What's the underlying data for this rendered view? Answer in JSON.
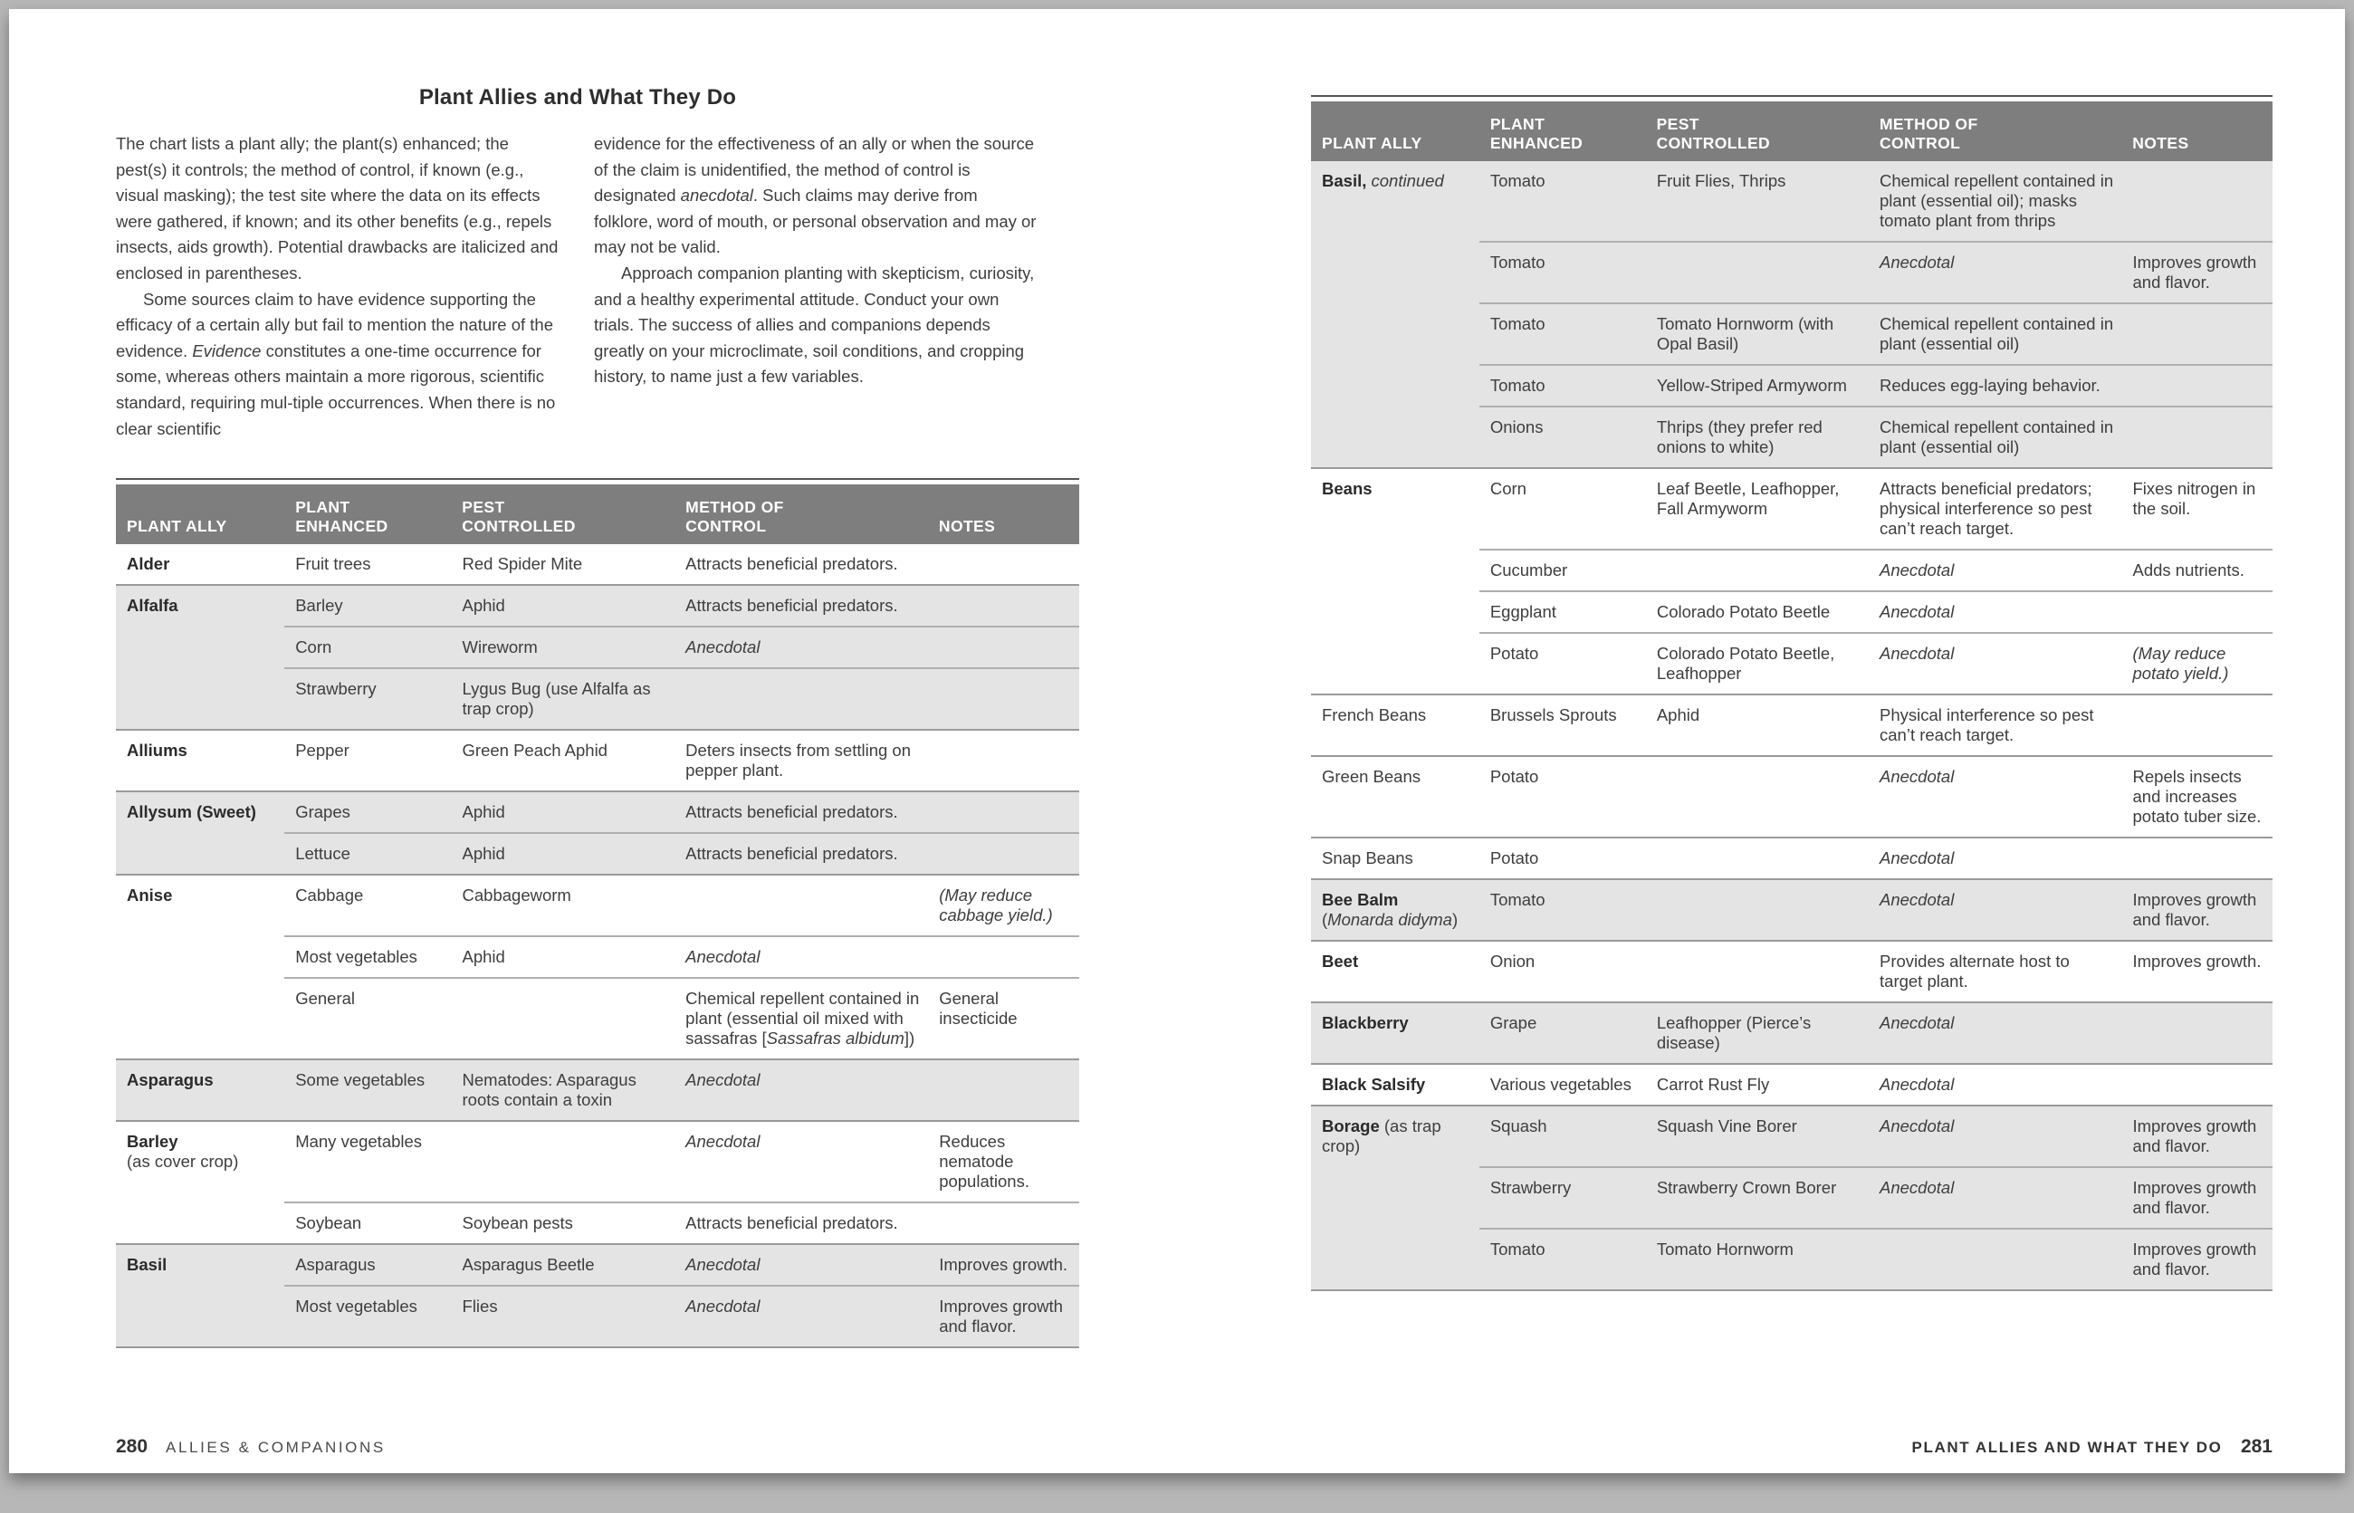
{
  "title": "Plant Allies and What They Do",
  "intro": {
    "col1": [
      {
        "indent": false,
        "text": "The chart lists a plant ally; the plant(s) enhanced; the pest(s) it controls; the method of control, if known (e.g., visual masking); the test site where the data on its effects were gathered, if known; and its other benefits (e.g., repels insects, aids growth). Potential drawbacks are italicized and enclosed in parentheses."
      },
      {
        "indent": true,
        "text": "Some sources claim to have evidence supporting the efficacy of a certain ally but fail to mention the nature of the evidence. *Evidence* constitutes a one-time occurrence for some, whereas others maintain a more rigorous, scientific standard, requiring mul-tiple occurrences. When there is no clear scientific"
      }
    ],
    "col2": [
      {
        "indent": false,
        "text": "evidence for the effectiveness of an ally or when the source of the claim is unidentified, the method of control is designated *anecdotal*. Such claims may derive from folklore, word of mouth, or personal observation and may or may not be valid."
      },
      {
        "indent": true,
        "text": "Approach companion planting with skepticism, curiosity, and a healthy experimental attitude. Conduct your own trials. The success of allies and companions depends greatly on your microclimate, soil conditions, and cropping history, to name just a few variables."
      }
    ]
  },
  "table_headers": [
    "PLANT ALLY",
    "PLANT\nENHANCED",
    "PEST\nCONTROLLED",
    "METHOD OF\nCONTROL",
    "NOTES"
  ],
  "tables": [
    {
      "groups": [
        {
          "ally": "**Alder**",
          "shaded": false,
          "rows": [
            [
              "Fruit trees",
              "Red Spider Mite",
              "Attracts beneficial predators.",
              ""
            ]
          ]
        },
        {
          "ally": "**Alfalfa**",
          "shaded": true,
          "rows": [
            [
              "Barley",
              "Aphid",
              "Attracts beneficial predators.",
              ""
            ],
            [
              "Corn",
              "Wireworm",
              "*Anecdotal*",
              ""
            ],
            [
              "Strawberry",
              "Lygus Bug (use Alfalfa as trap crop)",
              "",
              ""
            ]
          ]
        },
        {
          "ally": "**Alliums**",
          "shaded": false,
          "rows": [
            [
              "Pepper",
              "Green Peach Aphid",
              "Deters insects from settling on pepper plant.",
              ""
            ]
          ]
        },
        {
          "ally": "**Allysum (Sweet)**",
          "shaded": true,
          "rows": [
            [
              "Grapes",
              "Aphid",
              "Attracts beneficial predators.",
              ""
            ],
            [
              "Lettuce",
              "Aphid",
              "Attracts beneficial predators.",
              ""
            ]
          ]
        },
        {
          "ally": "**Anise**",
          "shaded": false,
          "rows": [
            [
              "Cabbage",
              "Cabbageworm",
              "",
              "*(May reduce cabbage yield.)*"
            ],
            [
              "Most vegetables",
              "Aphid",
              "*Anecdotal*",
              ""
            ],
            [
              "General",
              "",
              "Chemical repellent contained in plant (essential oil mixed with sassafras [*Sassafras albidum*])",
              "General insecticide"
            ]
          ]
        },
        {
          "ally": "**Asparagus**",
          "shaded": true,
          "rows": [
            [
              "Some vegetables",
              "Nematodes: Asparagus roots contain a toxin",
              "*Anecdotal*",
              ""
            ]
          ]
        },
        {
          "ally": "**Barley**\n(as cover crop)",
          "shaded": false,
          "rows": [
            [
              "Many vegetables",
              "",
              "*Anecdotal*",
              "Reduces nematode populations."
            ],
            [
              "Soybean",
              "Soybean pests",
              "Attracts beneficial predators.",
              ""
            ]
          ]
        },
        {
          "ally": "**Basil**",
          "shaded": true,
          "rows": [
            [
              "Asparagus",
              "Asparagus Beetle",
              "*Anecdotal*",
              "Improves growth."
            ],
            [
              "Most vegetables",
              "Flies",
              "*Anecdotal*",
              "Improves growth and flavor."
            ]
          ]
        }
      ]
    },
    {
      "groups": [
        {
          "ally": "**Basil,** *continued*",
          "shaded": true,
          "rows": [
            [
              "Tomato",
              "Fruit Flies, Thrips",
              "Chemical repellent contained in plant (essential oil); masks tomato plant from thrips",
              ""
            ],
            [
              "Tomato",
              "",
              "*Anecdotal*",
              "Improves growth and flavor."
            ],
            [
              "Tomato",
              "Tomato Hornworm (with Opal Basil)",
              "Chemical repellent contained in plant (essential oil)",
              ""
            ],
            [
              "Tomato",
              "Yellow-Striped Armyworm",
              "Reduces egg-laying behavior.",
              ""
            ],
            [
              "Onions",
              "Thrips (they prefer red onions to white)",
              "Chemical repellent contained in plant (essential oil)",
              ""
            ]
          ]
        },
        {
          "ally": "**Beans**",
          "shaded": false,
          "rows": [
            [
              "Corn",
              "Leaf Beetle, Leafhopper, Fall Armyworm",
              "Attracts beneficial predators; physical interference so pest can’t reach target.",
              "Fixes nitrogen in the soil."
            ],
            [
              "Cucumber",
              "",
              "*Anecdotal*",
              "Adds nutrients."
            ],
            [
              "Eggplant",
              "Colorado Potato Beetle",
              "*Anecdotal*",
              ""
            ],
            [
              "Potato",
              "Colorado Potato Beetle, Leafhopper",
              "*Anecdotal*",
              "*(May reduce potato yield.)*"
            ]
          ]
        },
        {
          "ally": "French Beans",
          "shaded": false,
          "rows": [
            [
              "Brussels Sprouts",
              "Aphid",
              "Physical interference so pest can’t reach target.",
              ""
            ]
          ]
        },
        {
          "ally": "Green Beans",
          "shaded": false,
          "rows": [
            [
              "Potato",
              "",
              "*Anecdotal*",
              "Repels insects and increases potato tuber size."
            ]
          ]
        },
        {
          "ally": "Snap Beans",
          "shaded": false,
          "rows": [
            [
              "Potato",
              "",
              "*Anecdotal*",
              ""
            ]
          ]
        },
        {
          "ally": "**Bee Balm**\n(*Monarda didyma*)",
          "shaded": true,
          "rows": [
            [
              "Tomato",
              "",
              "*Anecdotal*",
              "Improves growth and flavor."
            ]
          ]
        },
        {
          "ally": "**Beet**",
          "shaded": false,
          "rows": [
            [
              "Onion",
              "",
              "Provides alternate host to target plant.",
              "Improves growth."
            ]
          ]
        },
        {
          "ally": "**Blackberry**",
          "shaded": true,
          "rows": [
            [
              "Grape",
              "Leafhopper (Pierce’s disease)",
              "*Anecdotal*",
              ""
            ]
          ]
        },
        {
          "ally": "**Black Salsify**",
          "shaded": false,
          "rows": [
            [
              "Various vegetables",
              "Carrot Rust Fly",
              "*Anecdotal*",
              ""
            ]
          ]
        },
        {
          "ally": "**Borage** (as trap crop)",
          "shaded": true,
          "rows": [
            [
              "Squash",
              "Squash Vine Borer",
              "*Anecdotal*",
              "Improves growth and flavor."
            ],
            [
              "Strawberry",
              "Strawberry Crown Borer",
              "*Anecdotal*",
              "Improves growth and flavor."
            ],
            [
              "Tomato",
              "Tomato Hornworm",
              "",
              "Improves growth and flavor."
            ]
          ]
        }
      ]
    }
  ],
  "footer_left": {
    "page_number": "280",
    "running_head": "ALLIES & COMPANIONS"
  },
  "footer_right": {
    "running_head": "PLANT ALLIES AND WHAT THEY DO",
    "page_number": "281"
  },
  "colors": {
    "surround_bg": "#b7b7b7",
    "page_bg": "#ffffff",
    "table_header_bg": "#7e7e7e",
    "table_header_text": "#ffffff",
    "row_shade": "#e4e4e4",
    "text": "#3e3e3e",
    "heading_text": "#2e2e2e",
    "rule_dark": "#555555",
    "rule_group": "#9a9a9a",
    "rule_row": "#afafaf"
  }
}
